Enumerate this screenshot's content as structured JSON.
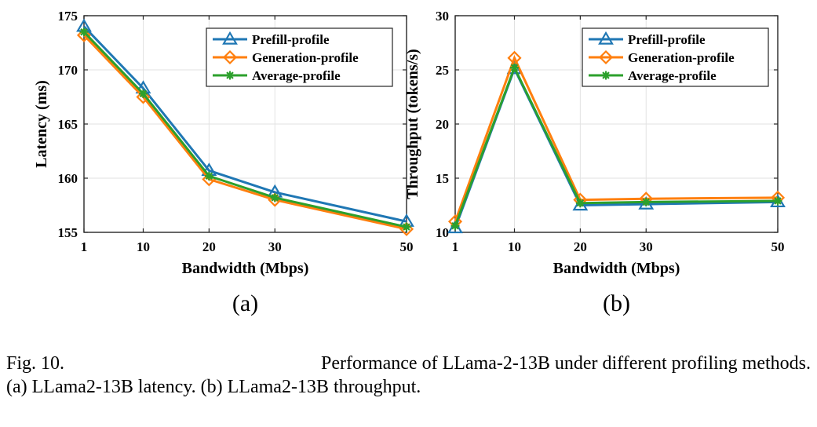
{
  "chart_data": [
    {
      "type": "line",
      "panel_label": "(a)",
      "x": [
        1,
        10,
        20,
        30,
        50
      ],
      "xtick_labels": [
        "1",
        "10",
        "20",
        "30",
        "50"
      ],
      "xlabel": "Bandwidth (Mbps)",
      "ylabel": "Latency (ms)",
      "ylim": [
        155,
        175
      ],
      "yticks": [
        155,
        160,
        165,
        170,
        175
      ],
      "grid": true,
      "legend_position": "top-right",
      "series": [
        {
          "name": "Prefill-profile",
          "color": "#1f77b4",
          "marker": "triangle",
          "values": [
            174.0,
            168.3,
            160.7,
            158.7,
            156.0
          ]
        },
        {
          "name": "Generation-profile",
          "color": "#ff7f0e",
          "marker": "diamond",
          "values": [
            173.2,
            167.5,
            159.9,
            158.0,
            155.3
          ]
        },
        {
          "name": "Average-profile",
          "color": "#2ca02c",
          "marker": "star",
          "values": [
            173.5,
            167.8,
            160.2,
            158.2,
            155.5
          ]
        }
      ]
    },
    {
      "type": "line",
      "panel_label": "(b)",
      "x": [
        1,
        10,
        20,
        30,
        50
      ],
      "xtick_labels": [
        "1",
        "10",
        "20",
        "30",
        "50"
      ],
      "xlabel": "Bandwidth (Mbps)",
      "ylabel": "Throughput (tokens/s)",
      "ylim": [
        10,
        30
      ],
      "yticks": [
        10,
        15,
        20,
        25,
        30
      ],
      "grid": true,
      "legend_position": "top-right",
      "series": [
        {
          "name": "Prefill-profile",
          "color": "#1f77b4",
          "marker": "triangle",
          "values": [
            10.4,
            25.1,
            12.5,
            12.6,
            12.8
          ]
        },
        {
          "name": "Generation-profile",
          "color": "#ff7f0e",
          "marker": "diamond",
          "values": [
            11.0,
            26.1,
            13.0,
            13.1,
            13.2
          ]
        },
        {
          "name": "Average-profile",
          "color": "#2ca02c",
          "marker": "star",
          "values": [
            10.6,
            25.2,
            12.7,
            12.8,
            12.9
          ]
        }
      ]
    }
  ],
  "caption": {
    "fig_label": "Fig. 10.",
    "line1_text": "Performance of LLama-2-13B under different profiling methods.",
    "line2_text": "(a) LLama2-13B latency. (b) LLama2-13B throughput."
  }
}
